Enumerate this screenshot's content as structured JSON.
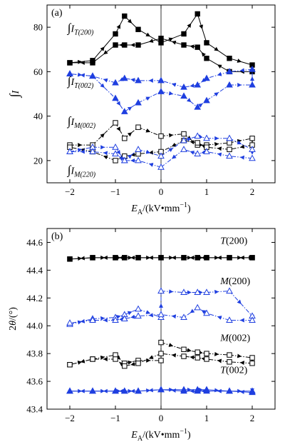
{
  "chart_data": [
    {
      "type": "line",
      "panel_label": "(a)",
      "xlabel": "E_A/(kV·mm^-1)",
      "xlabel_parts": {
        "main": "E",
        "sub": "A",
        "unit_pre": "/(kV•mm",
        "unit_sup": "−1",
        "unit_post": ")"
      },
      "ylabel": "∫I",
      "xlim": [
        -2.5,
        2.5
      ],
      "ylim": [
        10,
        90
      ],
      "xticks": [
        -2,
        -1,
        0,
        1,
        2
      ],
      "xtick_labels": [
        "−2",
        "−1",
        "0",
        "1",
        "2"
      ],
      "yticks": [
        20,
        40,
        60,
        80
      ],
      "ytick_labels": [
        "20",
        "40",
        "60",
        "80"
      ],
      "zero_line": true,
      "grid": false,
      "series": [
        {
          "name": "T(200)",
          "label_main": "∫I",
          "label_sub": "T(200)",
          "color": "#000000",
          "marker": "filled-square",
          "dash": "solid",
          "label_at": [
            -2.05,
            78
          ],
          "x": [
            -2,
            -1.5,
            -1,
            -0.8,
            -0.5,
            0,
            0.5,
            0.8,
            1,
            1.5,
            2,
            2,
            1.5,
            1,
            0.8,
            0.5,
            0,
            -0.5,
            -0.8,
            -1,
            -1.5,
            -2
          ],
          "y": [
            64,
            65,
            77,
            85,
            79,
            73,
            77,
            86,
            73,
            66,
            63,
            60,
            60,
            66,
            71,
            72,
            75,
            72,
            72,
            72,
            64,
            64
          ]
        },
        {
          "name": "T(002)",
          "label_main": "∫I",
          "label_sub": "T(002)",
          "color": "#1f3fe0",
          "marker": "filled-triangle",
          "dash": "dashdot",
          "label_at": [
            -2.05,
            54
          ],
          "x": [
            -2,
            -1.5,
            -1,
            -0.8,
            -0.5,
            0,
            0.5,
            0.8,
            1,
            1.5,
            2,
            2,
            1.5,
            1,
            0.8,
            0.5,
            0,
            -0.5,
            -0.8,
            -1,
            -1.5,
            -2
          ],
          "y": [
            59,
            58,
            48,
            42,
            46,
            51,
            49,
            44,
            47,
            54,
            54,
            61,
            60,
            57,
            54,
            53,
            56,
            56,
            57,
            55,
            58,
            59
          ]
        },
        {
          "name": "M(002)",
          "label_main": "∫I",
          "label_sub": "M(002)",
          "color": "#000000",
          "marker": "open-square",
          "dash": "dashdot",
          "label_at": [
            -2.05,
            36
          ],
          "x": [
            -2,
            -1.5,
            -1,
            -0.8,
            -0.5,
            0,
            0.5,
            0.8,
            1,
            1.5,
            2,
            2,
            1.5,
            1,
            0.8,
            0.5,
            0,
            -0.5,
            -0.8,
            -1,
            -1.5,
            -2
          ],
          "y": [
            27,
            27,
            37,
            30,
            35,
            31,
            32,
            27,
            27,
            28,
            30,
            27,
            25,
            26,
            28,
            29,
            24,
            23,
            22,
            20,
            24,
            26
          ]
        },
        {
          "name": "M(220)",
          "label_main": "∫I",
          "label_sub": "M(220)",
          "color": "#1f3fe0",
          "marker": "open-triangle",
          "dash": "dashdot",
          "label_at": [
            -2.05,
            14
          ],
          "x": [
            -2,
            -1.5,
            -1,
            -0.8,
            -0.5,
            0,
            0.5,
            0.8,
            1,
            1.5,
            2,
            2,
            1.5,
            1,
            0.8,
            0.5,
            0,
            -0.5,
            -0.8,
            -1,
            -1.5,
            -2
          ],
          "y": [
            24,
            26,
            26,
            20,
            25,
            22,
            29,
            31,
            30,
            30,
            25,
            21,
            22,
            24,
            23,
            25,
            17,
            20,
            20,
            23,
            24,
            24
          ]
        }
      ]
    },
    {
      "type": "line",
      "panel_label": "(b)",
      "xlabel": "E_A/(kV·mm^-1)",
      "xlabel_parts": {
        "main": "E",
        "sub": "A",
        "unit_pre": "/(kV•mm",
        "unit_sup": "−1",
        "unit_post": ")"
      },
      "ylabel": "2θ/(°)",
      "xlim": [
        -2.5,
        2.5
      ],
      "ylim": [
        43.4,
        44.7
      ],
      "xticks": [
        -2,
        -1,
        0,
        1,
        2
      ],
      "xtick_labels": [
        "−2",
        "−1",
        "0",
        "1",
        "2"
      ],
      "yticks": [
        43.4,
        43.6,
        43.8,
        44.0,
        44.2,
        44.4,
        44.6
      ],
      "ytick_labels": [
        "43.4",
        "43.6",
        "43.8",
        "44.0",
        "44.2",
        "44.4",
        "44.6"
      ],
      "zero_line": true,
      "grid": false,
      "series": [
        {
          "name": "T(200)",
          "label_main": "T",
          "label_rest": "(200)",
          "color": "#000000",
          "marker": "filled-square",
          "dash": "solid",
          "label_at": [
            1.3,
            44.59
          ],
          "x": [
            -2,
            -1.5,
            -1,
            -0.8,
            -0.5,
            0,
            0.5,
            0.8,
            1,
            1.5,
            2,
            2,
            1.5,
            1,
            0.8,
            0.5,
            0,
            -0.5,
            -0.8,
            -1,
            -1.5,
            -2
          ],
          "y": [
            44.48,
            44.49,
            44.49,
            44.49,
            44.49,
            44.49,
            44.49,
            44.49,
            44.49,
            44.49,
            44.49,
            44.49,
            44.49,
            44.49,
            44.49,
            44.49,
            44.49,
            44.49,
            44.49,
            44.49,
            44.49,
            44.48
          ]
        },
        {
          "name": "M(200)",
          "label_main": "M",
          "label_rest": "(200)",
          "color": "#1f3fe0",
          "marker": "open-triangle",
          "dash": "dashdot",
          "label_at": [
            1.3,
            44.3
          ],
          "x": [
            -2,
            -1.5,
            -1,
            -0.8,
            -0.5,
            0,
            0,
            0.5,
            0.8,
            1,
            1.5,
            2,
            2,
            1.5,
            1,
            0.8,
            0.5,
            0,
            -0.5,
            -0.8,
            -1,
            -1.5,
            -2
          ],
          "y": [
            44.01,
            44.05,
            44.06,
            44.08,
            44.12,
            44.06,
            44.25,
            44.24,
            44.24,
            44.24,
            44.25,
            44.07,
            44.04,
            44.04,
            44.09,
            44.13,
            44.06,
            44.08,
            44.07,
            44.05,
            44.04,
            44.04,
            44.02
          ]
        },
        {
          "name": "M(002)",
          "label_main": "M",
          "label_rest": "(002)",
          "color": "#000000",
          "marker": "open-square",
          "dash": "dashdot",
          "label_at": [
            1.3,
            43.89
          ],
          "x": [
            -2,
            -1.5,
            -1,
            -0.8,
            -0.5,
            0,
            0,
            0.5,
            0.8,
            1,
            1.5,
            2,
            2,
            1.5,
            1,
            0.8,
            0.5,
            0,
            -0.5,
            -0.8,
            -1,
            -1.5,
            -2
          ],
          "y": [
            43.72,
            43.76,
            43.79,
            43.73,
            43.75,
            43.75,
            43.88,
            43.83,
            43.81,
            43.8,
            43.79,
            43.77,
            43.73,
            43.74,
            43.76,
            43.77,
            43.78,
            43.8,
            43.73,
            43.71,
            43.76,
            43.76,
            43.72
          ]
        },
        {
          "name": "T(002)",
          "label_main": "T",
          "label_rest": "(002)",
          "color": "#1f3fe0",
          "marker": "filled-triangle",
          "dash": "solid",
          "label_at": [
            1.3,
            43.66
          ],
          "x": [
            -2,
            -1.5,
            -1,
            -0.8,
            -0.5,
            0,
            0.5,
            0.8,
            1,
            1.5,
            2,
            2,
            1.5,
            1,
            0.8,
            0.5,
            0,
            -0.5,
            -0.8,
            -1,
            -1.5,
            -2
          ],
          "y": [
            43.53,
            43.53,
            43.53,
            43.53,
            43.53,
            43.54,
            43.54,
            43.54,
            43.54,
            43.53,
            43.53,
            43.52,
            43.53,
            43.53,
            43.53,
            43.53,
            43.54,
            43.53,
            43.53,
            43.53,
            43.53,
            43.53
          ]
        }
      ]
    }
  ]
}
